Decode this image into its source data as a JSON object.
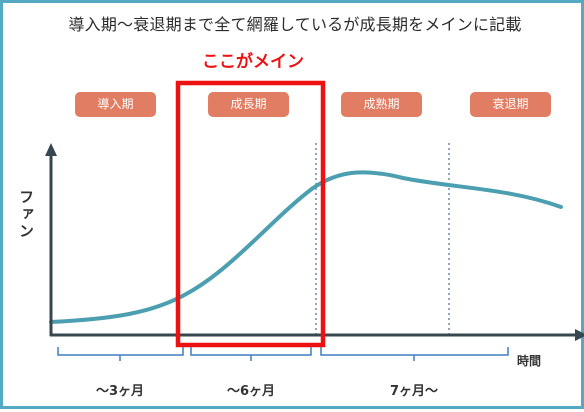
{
  "title": "導入期〜衰退期まで全て網羅しているが成長期をメインに記載",
  "highlight_label": "ここがメイン",
  "stages": [
    "導入期",
    "成長期",
    "成熟期",
    "衰退期"
  ],
  "y_axis_label": "ファン",
  "x_axis_label": "時間",
  "durations": [
    "〜3ヶ月",
    "〜6ヶ月",
    "7ヶ月〜"
  ],
  "colors": {
    "frame": "#56a9c2",
    "curve": "#4b9fb0",
    "stage_badge": "#e07d63",
    "highlight": "#ee1111",
    "axis": "#37474f",
    "bracket": "#3f7fbf"
  }
}
